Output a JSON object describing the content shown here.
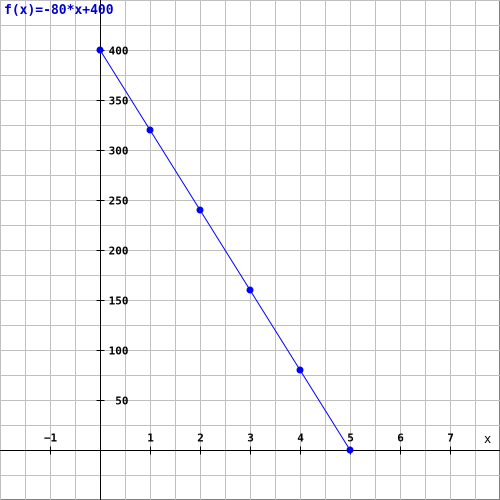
{
  "chart_data": {
    "type": "line",
    "title": "f(x)=-80*x+400",
    "xlabel": "x",
    "ylabel": "",
    "xlim": [
      -2,
      8
    ],
    "ylim": [
      -50,
      450
    ],
    "x_ticks": [
      -1,
      1,
      2,
      3,
      4,
      5,
      6,
      7
    ],
    "x_tick_labels": [
      "−1",
      "1",
      "2",
      "3",
      "4",
      "5",
      "6",
      "7"
    ],
    "y_ticks": [
      50,
      100,
      150,
      200,
      250,
      300,
      350,
      400
    ],
    "y_tick_labels": [
      "50",
      "100",
      "150",
      "200",
      "250",
      "300",
      "350",
      "400"
    ],
    "grid": true,
    "series": [
      {
        "x": [
          0,
          1,
          2,
          3,
          4,
          5
        ],
        "y": [
          400,
          320,
          240,
          160,
          80,
          0
        ],
        "color": "#0000ff"
      }
    ]
  },
  "colors": {
    "grid": "#c0c0c0",
    "axes": "#000000",
    "border": "#808080",
    "title": "#0000cc",
    "series": "#0000ff"
  }
}
